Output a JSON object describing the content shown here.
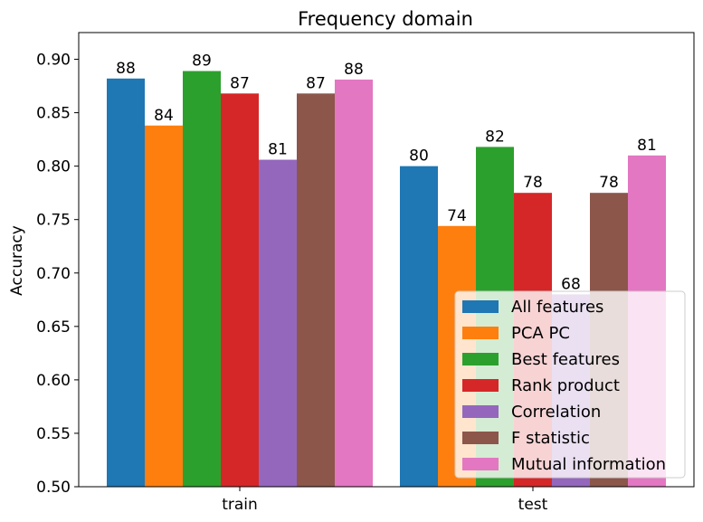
{
  "chart_data": {
    "type": "bar",
    "title": "Frequency domain",
    "xlabel": "",
    "ylabel": "Accuracy",
    "categories": [
      "train",
      "test"
    ],
    "ylim": [
      0.5,
      0.925
    ],
    "yticks": [
      "0.50",
      "0.55",
      "0.60",
      "0.65",
      "0.70",
      "0.75",
      "0.80",
      "0.85",
      "0.90"
    ],
    "grid": false,
    "legend_position": "bottom-right",
    "series": [
      {
        "name": "All features",
        "color": "#1f77b4",
        "values": [
          0.882,
          0.8
        ],
        "labels": [
          "88",
          "80"
        ]
      },
      {
        "name": "PCA PC",
        "color": "#ff7f0e",
        "values": [
          0.838,
          0.744
        ],
        "labels": [
          "84",
          "74"
        ]
      },
      {
        "name": "Best features",
        "color": "#2ca02c",
        "values": [
          0.889,
          0.818
        ],
        "labels": [
          "89",
          "82"
        ]
      },
      {
        "name": "Rank product",
        "color": "#d62728",
        "values": [
          0.868,
          0.775
        ],
        "labels": [
          "87",
          "78"
        ]
      },
      {
        "name": "Correlation",
        "color": "#9467bd",
        "values": [
          0.806,
          0.68
        ],
        "labels": [
          "81",
          "68"
        ]
      },
      {
        "name": "F statistic",
        "color": "#8c564b",
        "values": [
          0.868,
          0.775
        ],
        "labels": [
          "87",
          "78"
        ]
      },
      {
        "name": "Mutual information",
        "color": "#e377c2",
        "values": [
          0.881,
          0.81
        ],
        "labels": [
          "88",
          "81"
        ]
      }
    ]
  }
}
